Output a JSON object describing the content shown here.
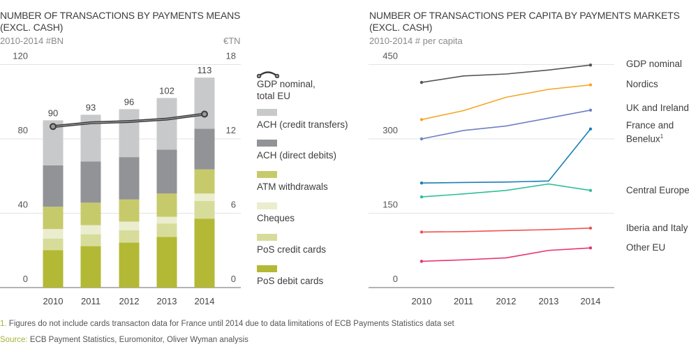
{
  "left_chart": {
    "title_line1": "NUMBER OF TRANSACTIONS BY PAYMENTS MEANS",
    "title_line2": "(EXCL. CASH)",
    "subtitle": "2010-2014 #BN",
    "right_unit": "€TN"
  },
  "right_chart": {
    "title_line1": "NUMBER OF TRANSACTIONS PER CAPITA BY PAYMENTS MARKETS",
    "title_line2": "(EXCL. CASH)",
    "subtitle": "2010-2014 # per capita"
  },
  "footnote": {
    "marker": "1.",
    "text": "Figures do not include cards transacton data for France until 2014 due to data limitations of ECB Payments Statistics data set"
  },
  "source": {
    "label": "Source:",
    "text": "ECB Payment Statistics, Euromonitor, Oliver Wyman analysis"
  },
  "chart_data": [
    {
      "type": "bar",
      "stacked": true,
      "title": "NUMBER OF TRANSACTIONS BY PAYMENTS MEANS (EXCL. CASH)",
      "subtitle": "2010-2014 #BN",
      "categories": [
        "2010",
        "2011",
        "2012",
        "2013",
        "2014"
      ],
      "ylim": [
        0,
        120
      ],
      "yticks": [
        0,
        40,
        80,
        120
      ],
      "y2lim": [
        0,
        18
      ],
      "y2ticks": [
        0,
        6,
        12,
        18
      ],
      "y2label": "€TN",
      "grid": true,
      "legend_position": "right",
      "totals": [
        90,
        93,
        96,
        102,
        113
      ],
      "series": [
        {
          "name": "PoS debit cards",
          "color": "#b3b935",
          "values": [
            20.1,
            22.3,
            24.2,
            27.3,
            37.1
          ]
        },
        {
          "name": "PoS credit cards",
          "color": "#d8dc9b",
          "values": [
            6.3,
            6.4,
            6.6,
            7.2,
            9.5
          ]
        },
        {
          "name": "Cheques",
          "color": "#ebedcf",
          "values": [
            5.1,
            4.9,
            4.7,
            3.6,
            4.0
          ]
        },
        {
          "name": "ATM withdrawals",
          "color": "#c7ca6a",
          "values": [
            12.0,
            12.1,
            11.9,
            12.5,
            13.0
          ]
        },
        {
          "name": "ACH (direct debits)",
          "color": "#929396",
          "values": [
            22.3,
            22.2,
            22.8,
            23.6,
            21.9
          ]
        },
        {
          "name": "ACH (credit transfers)",
          "color": "#c8c9cb",
          "values": [
            24.2,
            25.1,
            25.8,
            27.8,
            27.5
          ]
        }
      ],
      "line_series": {
        "name": "GDP nominal, total EU",
        "axis": "right",
        "color": "#3a3a3a",
        "values": [
          13.0,
          13.3,
          13.4,
          13.6,
          14.0
        ]
      },
      "legend_order": [
        "GDP nominal, total EU",
        "ACH (credit transfers)",
        "ACH (direct debits)",
        "ATM withdrawals",
        "Cheques",
        "PoS credit cards",
        "PoS debit cards"
      ]
    },
    {
      "type": "line",
      "title": "NUMBER OF TRANSACTIONS PER CAPITA BY PAYMENTS MARKETS (EXCL. CASH)",
      "subtitle": "2010-2014 # per capita",
      "x": [
        "2010",
        "2011",
        "2012",
        "2013",
        "2014"
      ],
      "ylim": [
        0,
        450
      ],
      "yticks": [
        0,
        150,
        300,
        450
      ],
      "grid": true,
      "legend_position": "right",
      "series": [
        {
          "name": "GDP nominal",
          "color": "#555555",
          "values": [
            414,
            427,
            431,
            439,
            449
          ]
        },
        {
          "name": "Nordics",
          "color": "#f5a623",
          "values": [
            339,
            357,
            384,
            400,
            409
          ]
        },
        {
          "name": "UK and Ireland",
          "color": "#6f7fc4",
          "values": [
            300,
            317,
            326,
            342,
            358
          ]
        },
        {
          "name": "France and Benelux¹",
          "color": "#1a7fb5",
          "values": [
            211,
            212,
            213,
            215,
            320
          ]
        },
        {
          "name": "Central Europe",
          "color": "#2fbf9a",
          "values": [
            183,
            189,
            196,
            209,
            196
          ]
        },
        {
          "name": "Iberia and Italy",
          "color": "#ef5350",
          "values": [
            112,
            113,
            115,
            117,
            120
          ]
        },
        {
          "name": "Other EU",
          "color": "#e8336b",
          "values": [
            53,
            56,
            60,
            75,
            80
          ]
        }
      ]
    }
  ]
}
